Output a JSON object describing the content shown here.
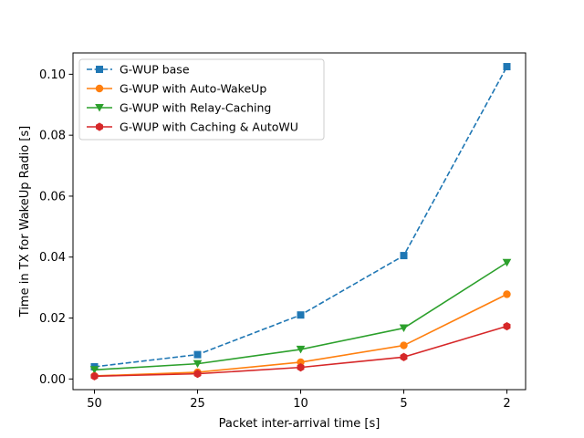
{
  "chart_data": {
    "type": "line",
    "title": "",
    "xlabel": "Packet inter-arrival time [s]",
    "ylabel": "Time in TX for WakeUp Radio [s]",
    "categories": [
      "50",
      "25",
      "10",
      "5",
      "2"
    ],
    "ylim": [
      -0.0035,
      0.107
    ],
    "yticks": [
      0.0,
      0.02,
      0.04,
      0.06,
      0.08,
      0.1
    ],
    "ytick_labels": [
      "0.00",
      "0.02",
      "0.04",
      "0.06",
      "0.08",
      "0.10"
    ],
    "grid": false,
    "legend_position": "top-left",
    "series": [
      {
        "name": "G-WUP base",
        "color": "#1f77b4",
        "linestyle": "dashed",
        "marker": "square",
        "values": [
          0.004,
          0.008,
          0.021,
          0.0405,
          0.1025
        ]
      },
      {
        "name": "G-WUP with Auto-WakeUp",
        "color": "#ff7f0e",
        "linestyle": "solid",
        "marker": "circle",
        "values": [
          0.001,
          0.0022,
          0.0055,
          0.011,
          0.0278
        ]
      },
      {
        "name": "G-WUP with Relay-Caching",
        "color": "#2ca02c",
        "linestyle": "solid",
        "marker": "triangle-down",
        "values": [
          0.003,
          0.005,
          0.0097,
          0.0167,
          0.0382
        ]
      },
      {
        "name": "G-WUP with Caching & AutoWU",
        "color": "#d62728",
        "linestyle": "solid",
        "marker": "hexagon",
        "values": [
          0.0009,
          0.0017,
          0.0038,
          0.0072,
          0.0173
        ]
      }
    ]
  }
}
